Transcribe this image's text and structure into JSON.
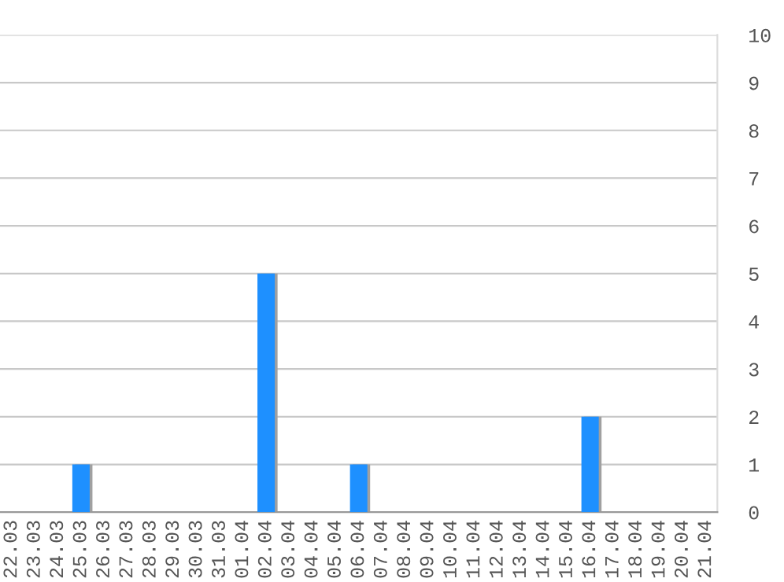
{
  "chart_data": {
    "type": "bar",
    "categories": [
      "22.03",
      "23.03",
      "24.03",
      "25.03",
      "26.03",
      "27.03",
      "28.03",
      "29.03",
      "30.03",
      "31.03",
      "01.04",
      "02.04",
      "03.04",
      "04.04",
      "05.04",
      "06.04",
      "07.04",
      "08.04",
      "09.04",
      "10.04",
      "11.04",
      "12.04",
      "13.04",
      "14.04",
      "15.04",
      "16.04",
      "17.04",
      "18.04",
      "19.04",
      "20.04",
      "21.04"
    ],
    "values": [
      0,
      0,
      0,
      1,
      0,
      0,
      0,
      0,
      0,
      0,
      0,
      5,
      0,
      0,
      0,
      1,
      0,
      0,
      0,
      0,
      0,
      0,
      0,
      0,
      0,
      2,
      0,
      0,
      0,
      0,
      0
    ],
    "color": "#1e90ff",
    "ylim": [
      0,
      10
    ],
    "yticks": [
      0,
      1,
      2,
      3,
      4,
      5,
      6,
      7,
      8,
      9,
      10
    ],
    "grid": "y"
  }
}
